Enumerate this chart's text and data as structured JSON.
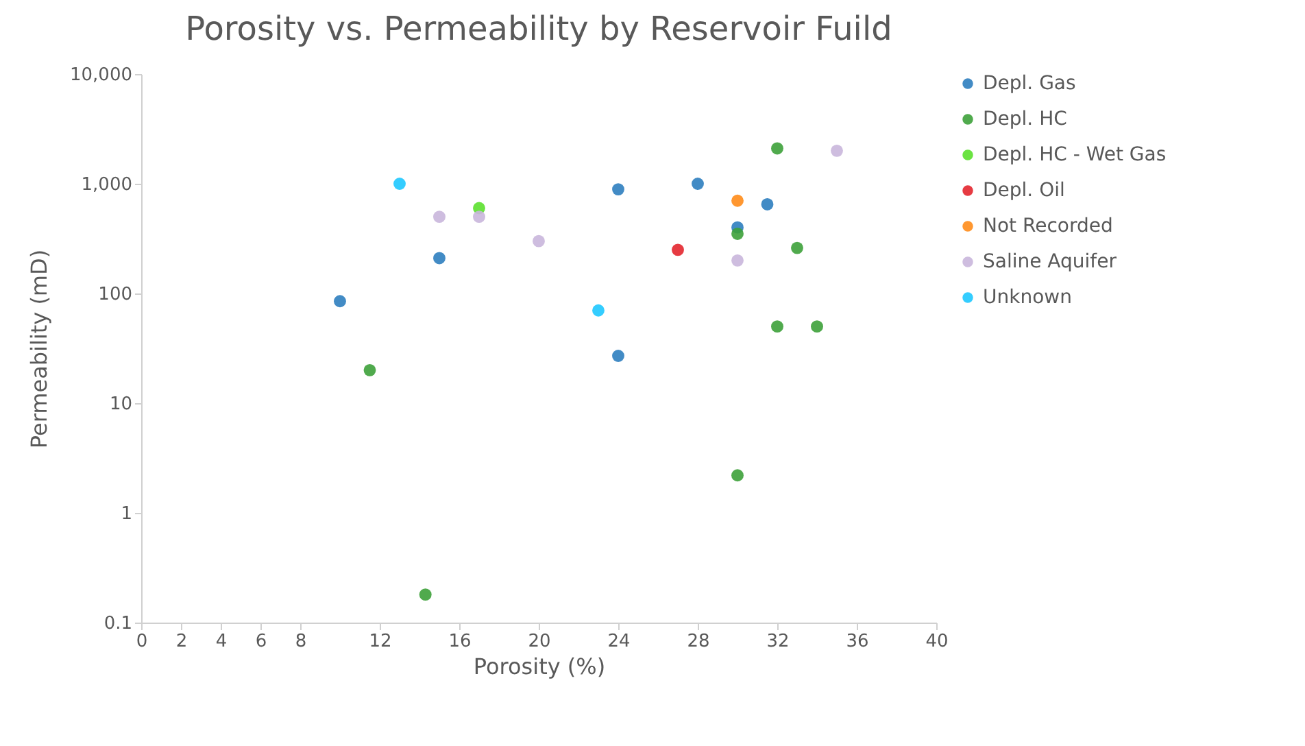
{
  "chart_data": {
    "type": "scatter",
    "title": "Porosity vs. Permeability by Reservoir Fuild",
    "xlabel": "Porosity (%)",
    "ylabel": "Permeability (mD)",
    "xlim": [
      0,
      40
    ],
    "xticks": [
      0,
      2,
      4,
      6,
      8,
      12,
      16,
      20,
      24,
      28,
      32,
      36,
      40
    ],
    "ylim": [
      0.1,
      10000
    ],
    "yticks": [
      0.1,
      1,
      10,
      100,
      {
        "value": 1000,
        "label": "1,000"
      },
      {
        "value": 10000,
        "label": "10,000"
      }
    ],
    "log": "y",
    "grid": false,
    "legend": "right",
    "marker": "circle",
    "series": [
      {
        "name": "Depl. Gas",
        "color": "#2e7ebf",
        "x": [
          10,
          15,
          24,
          28,
          24,
          30,
          31.5
        ],
        "values": [
          85,
          210,
          890,
          1000,
          27,
          400,
          650
        ]
      },
      {
        "name": "Depl. HC",
        "color": "#3da13a",
        "x": [
          11.5,
          14.3,
          32,
          30,
          33,
          32,
          34,
          30
        ],
        "values": [
          20,
          0.18,
          2100,
          350,
          260,
          50,
          50,
          2.2
        ]
      },
      {
        "name": "Depl. HC - Wet Gas",
        "color": "#5be02e",
        "x": [
          17
        ],
        "values": [
          600
        ]
      },
      {
        "name": "Depl. Oil",
        "color": "#e3262d",
        "x": [
          27
        ],
        "values": [
          250
        ]
      },
      {
        "name": "Not Recorded",
        "color": "#ff8c1a",
        "x": [
          30
        ],
        "values": [
          700
        ]
      },
      {
        "name": "Saline Aquifer",
        "color": "#c9b6dc",
        "x": [
          15,
          17,
          20,
          30,
          35
        ],
        "values": [
          500,
          500,
          300,
          200,
          2000
        ]
      },
      {
        "name": "Unknown",
        "color": "#1ec8ff",
        "x": [
          13,
          23
        ],
        "values": [
          1000,
          70
        ]
      }
    ]
  }
}
